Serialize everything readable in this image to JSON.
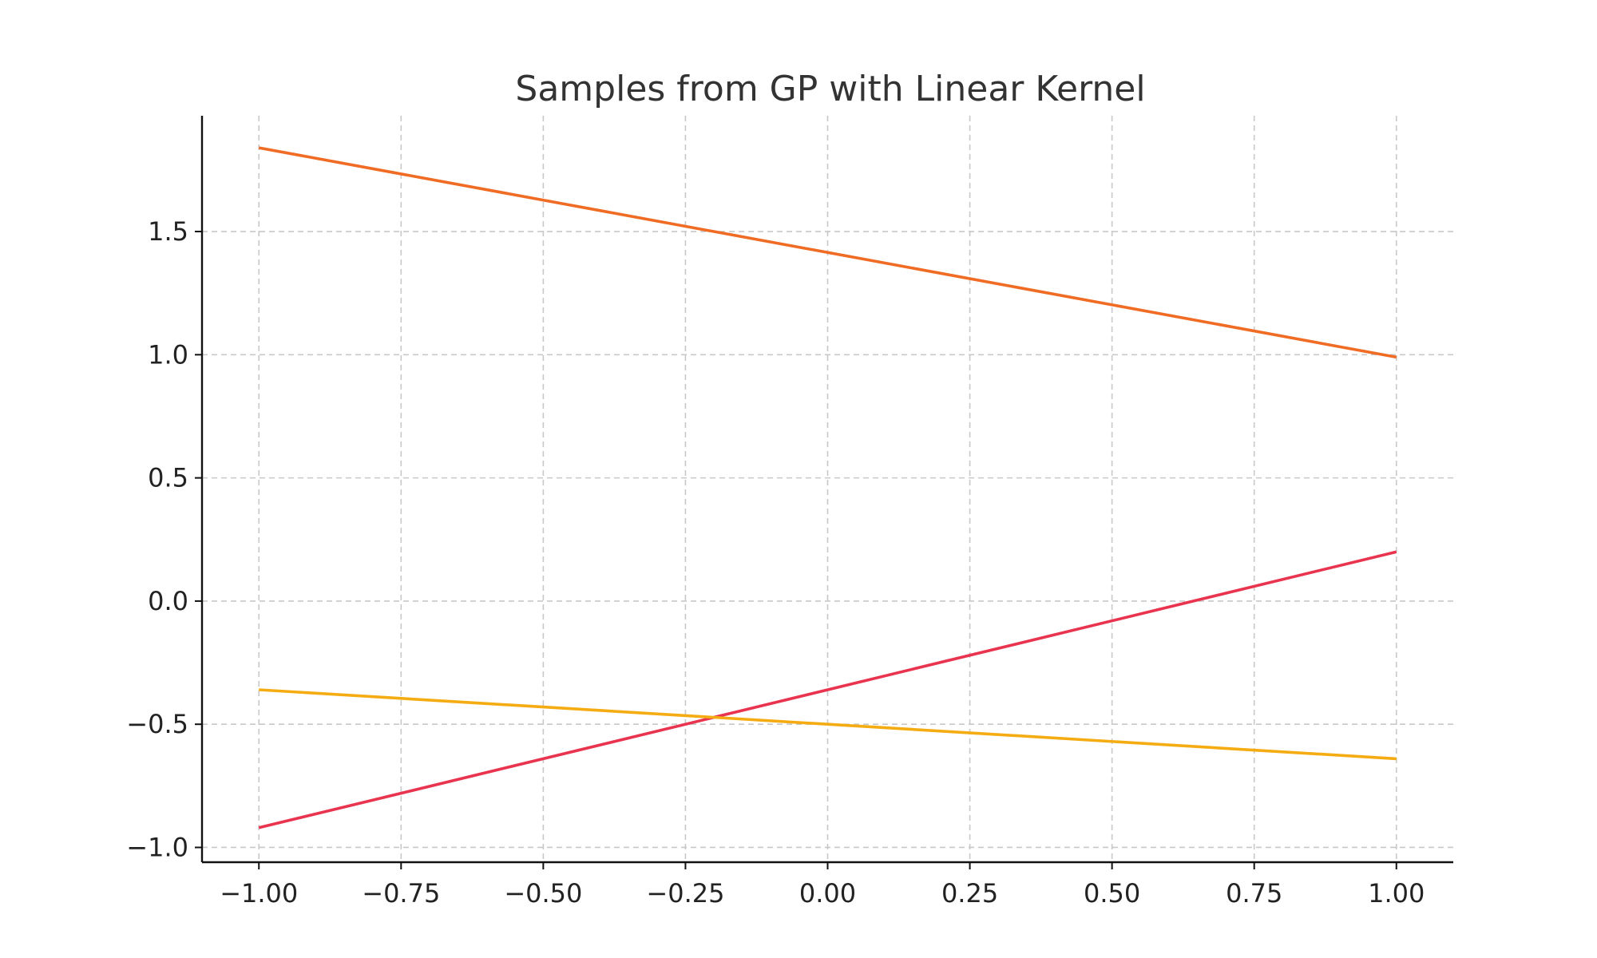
{
  "chart_data": {
    "type": "line",
    "title": "Samples from GP with Linear Kernel",
    "xlabel": "",
    "ylabel": "",
    "xlim": [
      -1.1,
      1.1
    ],
    "ylim": [
      -1.06,
      1.97
    ],
    "grid": true,
    "x_ticks": [
      -1.0,
      -0.75,
      -0.5,
      -0.25,
      0.0,
      0.25,
      0.5,
      0.75,
      1.0
    ],
    "x_tick_labels": [
      "−1.00",
      "−0.75",
      "−0.50",
      "−0.25",
      "0.00",
      "0.25",
      "0.50",
      "0.75",
      "1.00"
    ],
    "y_ticks": [
      -1.0,
      -0.5,
      0.0,
      0.5,
      1.0,
      1.5
    ],
    "y_tick_labels": [
      "−1.0",
      "−0.5",
      "0.0",
      "0.5",
      "1.0",
      "1.5"
    ],
    "series": [
      {
        "color": "#f06b24",
        "x": [
          -1.0,
          1.0
        ],
        "y": [
          1.84,
          0.99
        ]
      },
      {
        "color": "#e8344e",
        "x": [
          -1.0,
          1.0
        ],
        "y": [
          -0.92,
          0.2
        ]
      },
      {
        "color": "#f5ab12",
        "x": [
          -1.0,
          1.0
        ],
        "y": [
          -0.36,
          -0.64
        ]
      }
    ]
  }
}
